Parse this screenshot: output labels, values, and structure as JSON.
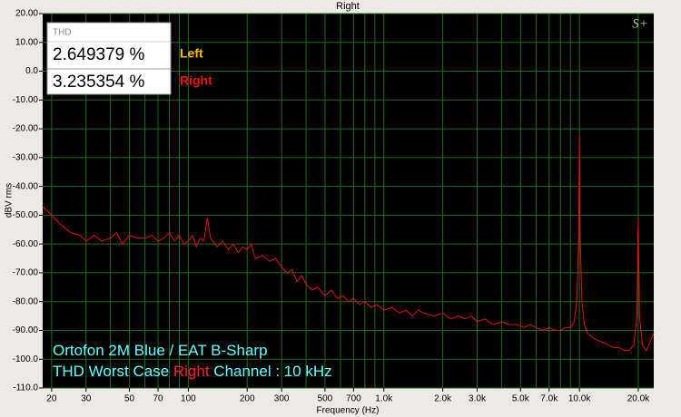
{
  "chart_data": {
    "type": "line",
    "title": "Right",
    "x_label": "Frequency (Hz)",
    "y_label": "dBV rms",
    "logo": "S+",
    "log_x": true,
    "grid": true,
    "xlim": [
      18,
      24000
    ],
    "ylim": [
      -110,
      20
    ],
    "xticks": [
      20,
      30,
      50,
      70,
      100,
      200,
      300,
      500,
      700,
      {
        "value": 1000,
        "label": "1.0k"
      },
      {
        "value": 2000,
        "label": "2.0k"
      },
      {
        "value": 3000,
        "label": "3.0k"
      },
      {
        "value": 5000,
        "label": "5.0k"
      },
      {
        "value": 7000,
        "label": "7.0k"
      },
      {
        "value": 10000,
        "label": "10.0k"
      },
      {
        "value": 20000,
        "label": "20.0k"
      }
    ],
    "xminor": [
      40,
      60,
      80,
      90,
      400,
      600,
      800,
      900,
      4000,
      6000,
      8000,
      9000
    ],
    "yticks": [
      {
        "value": 20,
        "label": "20.00"
      },
      {
        "value": 10,
        "label": "10.00"
      },
      {
        "value": 0,
        "label": "0.0"
      },
      {
        "value": -10,
        "label": "-10.00"
      },
      {
        "value": -20,
        "label": "-20.00"
      },
      {
        "value": -30,
        "label": "-30.00"
      },
      {
        "value": -40,
        "label": "-40.00"
      },
      {
        "value": -50,
        "label": "-50.00"
      },
      {
        "value": -60,
        "label": "-60.00"
      },
      {
        "value": -70,
        "label": "-70.00"
      },
      {
        "value": -80,
        "label": "-80.00"
      },
      {
        "value": -90,
        "label": "-90.00"
      },
      {
        "value": -100,
        "label": "-100.0"
      },
      {
        "value": -110,
        "label": "-110.0"
      }
    ],
    "x": [
      18,
      20,
      22,
      25,
      28,
      30,
      33,
      36,
      40,
      43,
      46,
      50,
      55,
      60,
      65,
      70,
      75,
      80,
      85,
      90,
      95,
      100,
      105,
      110,
      115,
      120,
      125,
      130,
      140,
      150,
      160,
      170,
      180,
      190,
      200,
      210,
      220,
      240,
      260,
      280,
      300,
      320,
      340,
      360,
      380,
      400,
      430,
      460,
      500,
      540,
      580,
      620,
      660,
      700,
      750,
      800,
      860,
      920,
      1000,
      1100,
      1200,
      1300,
      1400,
      1500,
      1600,
      1800,
      2000,
      2200,
      2400,
      2600,
      2800,
      3000,
      3300,
      3600,
      4000,
      4400,
      4800,
      5200,
      5600,
      6000,
      6500,
      7000,
      7500,
      8000,
      8500,
      9000,
      9400,
      9700,
      9900,
      10000,
      10100,
      10300,
      10600,
      11000,
      12000,
      13000,
      14000,
      15000,
      16000,
      17000,
      18000,
      19000,
      19700,
      20000,
      20300,
      21000,
      22000,
      23000,
      24000
    ],
    "series": [
      {
        "color": "#dd1111",
        "values": [
          -47,
          -50,
          -53,
          -56,
          -57,
          -59,
          -57,
          -59,
          -58,
          -56,
          -60,
          -57,
          -58,
          -58,
          -57,
          -59,
          -58,
          -56,
          -59,
          -57,
          -60,
          -59,
          -57,
          -61,
          -58,
          -59,
          -51,
          -58,
          -61,
          -59,
          -62,
          -60,
          -63,
          -61,
          -62,
          -60,
          -65,
          -64,
          -66,
          -65,
          -68,
          -70,
          -69,
          -73,
          -71,
          -74,
          -76,
          -75,
          -78,
          -76,
          -79,
          -78,
          -80,
          -79,
          -81,
          -80,
          -82,
          -81,
          -83,
          -82,
          -84,
          -83,
          -85,
          -83,
          -84,
          -85,
          -84,
          -86,
          -85,
          -86,
          -85,
          -87,
          -86,
          -88,
          -87,
          -88,
          -88,
          -89,
          -88,
          -89,
          -90,
          -89,
          -90,
          -90,
          -89,
          -89,
          -87,
          -80,
          -60,
          -22,
          -58,
          -80,
          -88,
          -91,
          -93,
          -94,
          -95,
          -96,
          -96,
          -97,
          -97,
          -95,
          -85,
          -51,
          -85,
          -95,
          -97,
          -94,
          -91
        ]
      }
    ],
    "readout": {
      "title": "THD",
      "rows": [
        {
          "value": "2.649379 %",
          "name": "Left",
          "color": "#f0c000"
        },
        {
          "value": "3.235354 %",
          "name": "Right",
          "color": "#ee1111"
        }
      ]
    },
    "annotations": [
      {
        "parts": [
          {
            "text": "Ortofon 2M Blue / EAT B-Sharp",
            "color": "#66ffff"
          }
        ]
      },
      {
        "parts": [
          {
            "text": "THD Worst Case ",
            "color": "#66ffff"
          },
          {
            "text": "Right",
            "color": "#ff2222"
          },
          {
            "text": " Channel : 10 kHz",
            "color": "#66ffff"
          }
        ]
      }
    ]
  }
}
